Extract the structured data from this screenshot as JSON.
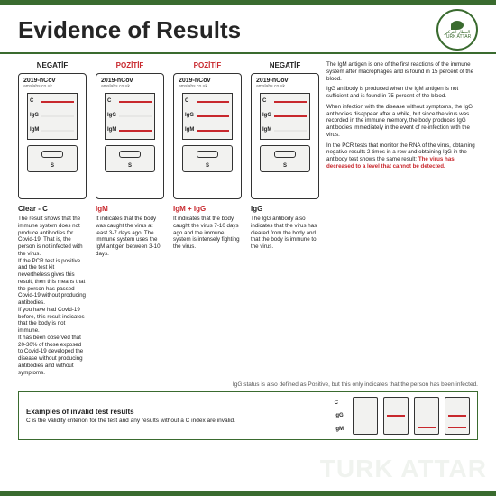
{
  "header": {
    "title": "Evidence of Results",
    "logo_top": "العطار التركي",
    "logo_bottom": "TURK ATTAR"
  },
  "cassette": {
    "title": "2019-nCov",
    "subtitle": "amslabs.co.uk",
    "s": "S",
    "lbl_c": "C",
    "lbl_igg": "IgG",
    "lbl_igm": "IgM"
  },
  "cards": [
    {
      "header": "NEGATİF",
      "pos": false,
      "lines": {
        "c": true,
        "igg": false,
        "igm": false
      },
      "result": "Clear - C",
      "desc": "The result shows that the immune system does not produce antibodies for Covid-19. That is, the person is not infected with the virus.\nIf the PCR test is positive and the test kit nevertheless gives this result, then this means that the person has passed Covid-19 without producing antibodies.\nIf you have had Covid-19 before, this result indicates that the body is not immune.\nIt has been observed that 20-30% of those exposed to Covid-19 developed the disease without producing antibodies and without symptoms."
    },
    {
      "header": "POZİTİF",
      "pos": true,
      "lines": {
        "c": true,
        "igg": false,
        "igm": true
      },
      "result": "IgM",
      "desc": "It indicates that the body was caught the virus at least 3-7 days ago. The immune system uses the IgM antigen between 3-10 days."
    },
    {
      "header": "POZİTİF",
      "pos": true,
      "lines": {
        "c": true,
        "igg": true,
        "igm": true
      },
      "result": "IgM + IgG",
      "desc": "It indicates that the body caught the virus 7-10 days ago and the immune system is intensely fighting the virus."
    },
    {
      "header": "NEGATİF",
      "pos": false,
      "lines": {
        "c": true,
        "igg": true,
        "igm": false
      },
      "result": "IgG",
      "desc": "The IgG antibody also indicates that the virus has cleared from the body and that the body is immune to the virus."
    }
  ],
  "right": {
    "p1": "The IgM antigen is one of the first reactions of the immune system after macrophages and is found in 15 percent of the blood.",
    "p2": "IgG antibody is produced when the IgM antigen is not sufficient and is found in 75 percent of the blood.",
    "p3": "When infection with the disease without symptoms, the IgG antibodies disappear after a while, but since the virus was recorded in the immune memory, the body produces IgG antibodies immediately in the event of re-infection with the virus.",
    "p4a": "In the PCR tests that monitor the RNA of the virus, obtaining negative results 2 times in a row and obtaining IgG in the antibody test shows the same result: ",
    "p4b": "The virus has decreased to a level that cannot be detected."
  },
  "footnote": "IgG status is also defined as Positive, but this only indicates that the person has been infected.",
  "invalid": {
    "title": "Examples of invalid test results",
    "body": "C is the validity criterion for the test and any results without a C index are invalid.",
    "samples": [
      {
        "c": false,
        "igg": false,
        "igm": false
      },
      {
        "c": false,
        "igg": true,
        "igm": false
      },
      {
        "c": false,
        "igg": false,
        "igm": true
      },
      {
        "c": false,
        "igg": true,
        "igm": true
      }
    ]
  },
  "colors": {
    "green": "#3a6b2f",
    "red": "#c8282d",
    "bg": "#ffffff"
  },
  "watermark": "TURK ATTAR"
}
